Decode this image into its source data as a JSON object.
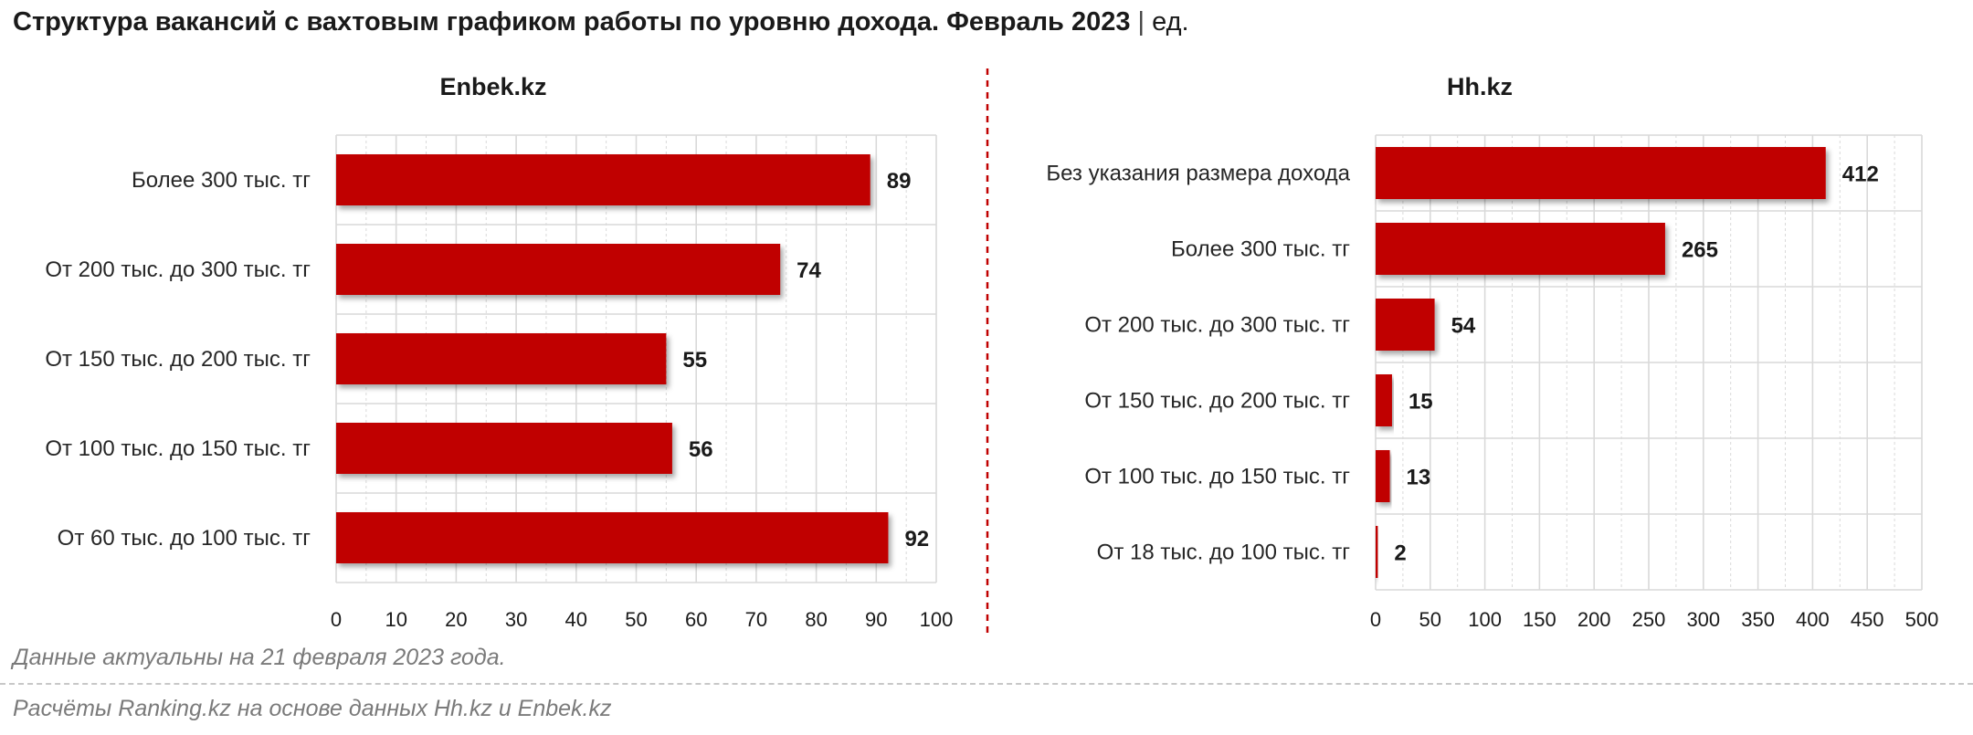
{
  "title": {
    "text": "Структура вакансий с вахтовым графиком работы по уровню дохода. Февраль 2023",
    "separator": "|",
    "unit": "ед."
  },
  "notes": {
    "date_note": "Данные актуальны на 21 февраля 2023 года.",
    "source": "Расчёты Ranking.kz на основе данных Hh.kz и Enbek.kz"
  },
  "colors": {
    "bar": "#c00000",
    "divider": "#c00000",
    "grid": "#d9d9d9"
  },
  "chart_data": [
    {
      "type": "bar",
      "orientation": "horizontal",
      "title": "Enbek.kz",
      "categories": [
        "Более 300 тыс. тг",
        "От 200 тыс. до 300 тыс. тг",
        "От 150 тыс. до 200 тыс. тг",
        "От 100 тыс. до 150 тыс. тг",
        "От 60 тыс. до 100 тыс. тг"
      ],
      "values": [
        89,
        74,
        55,
        56,
        92
      ],
      "xlim": [
        0,
        100
      ],
      "xticks": [
        0,
        10,
        20,
        30,
        40,
        50,
        60,
        70,
        80,
        90,
        100
      ],
      "grid": true,
      "data_labels": true
    },
    {
      "type": "bar",
      "orientation": "horizontal",
      "title": "Hh.kz",
      "categories": [
        "Без указания размера дохода",
        "Более 300 тыс. тг",
        "От 200 тыс. до 300 тыс. тг",
        "От 150 тыс. до 200 тыс. тг",
        "От 100 тыс. до 150 тыс. тг",
        "От 18 тыс. до 100 тыс. тг"
      ],
      "values": [
        412,
        265,
        54,
        15,
        13,
        2
      ],
      "xlim": [
        0,
        500
      ],
      "xticks": [
        0,
        50,
        100,
        150,
        200,
        250,
        300,
        350,
        400,
        450,
        500
      ],
      "grid": true,
      "data_labels": true
    }
  ]
}
